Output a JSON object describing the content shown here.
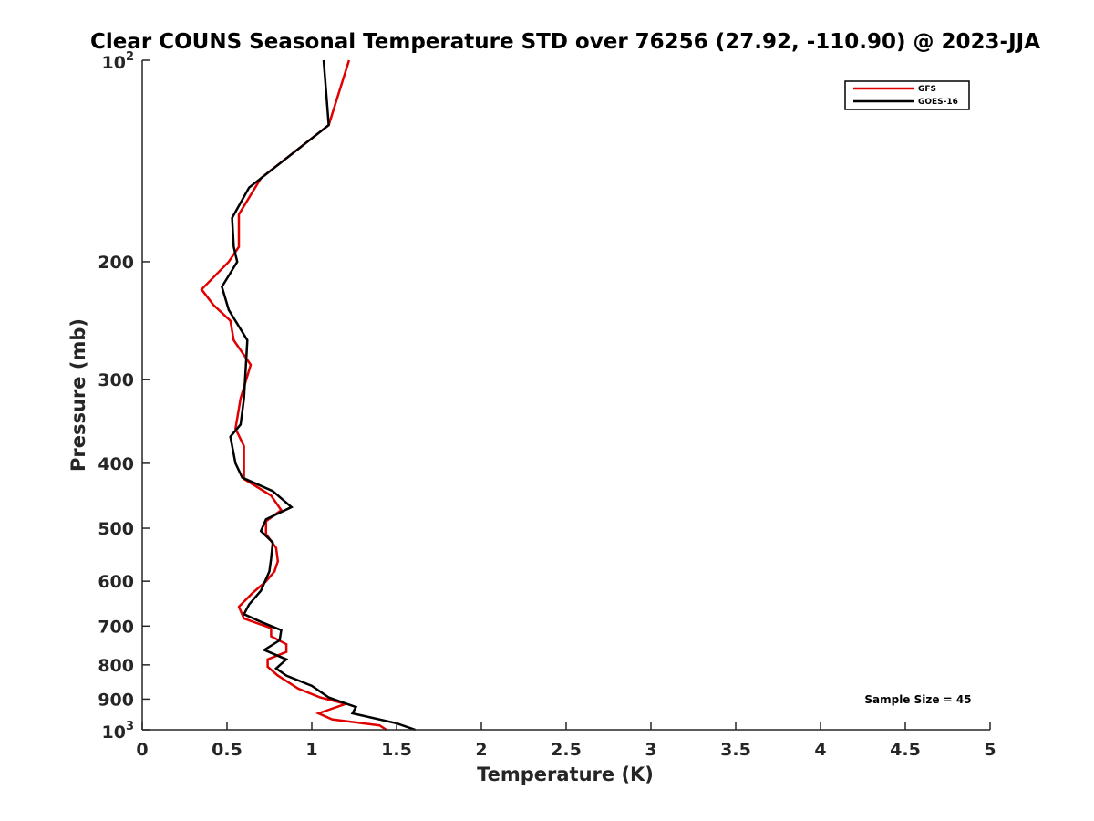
{
  "chart_data": {
    "type": "line",
    "title": "Clear COUNS Seasonal Temperature STD over 76256 (27.92, -110.90) @ 2023-JJA",
    "xlabel": "Temperature (K)",
    "ylabel": "Pressure (mb)",
    "xlim": [
      0,
      5
    ],
    "ylim": [
      1000,
      100
    ],
    "yscale": "log",
    "x_ticks": [
      "0",
      "0.5",
      "1",
      "1.5",
      "2",
      "2.5",
      "3",
      "3.5",
      "4",
      "4.5",
      "5"
    ],
    "y_ticks": [
      "200",
      "300",
      "400",
      "500",
      "600",
      "700",
      "800",
      "900"
    ],
    "y_limit_labels": {
      "top": {
        "base": "10",
        "exp": "2"
      },
      "bottom": {
        "base": "10",
        "exp": "3"
      }
    },
    "legend_position": "top-right",
    "annotation": "Sample Size = 45",
    "grid": false,
    "series": [
      {
        "name": "GFS",
        "color": "#e00000",
        "points": [
          [
            1.22,
            100
          ],
          [
            1.1,
            125
          ],
          [
            0.7,
            150
          ],
          [
            0.57,
            170
          ],
          [
            0.57,
            190
          ],
          [
            0.51,
            200
          ],
          [
            0.35,
            220
          ],
          [
            0.42,
            232
          ],
          [
            0.52,
            245
          ],
          [
            0.54,
            262
          ],
          [
            0.64,
            285
          ],
          [
            0.58,
            320
          ],
          [
            0.55,
            355
          ],
          [
            0.6,
            377
          ],
          [
            0.6,
            422
          ],
          [
            0.76,
            447
          ],
          [
            0.82,
            470
          ],
          [
            0.73,
            488
          ],
          [
            0.73,
            510
          ],
          [
            0.79,
            535
          ],
          [
            0.8,
            560
          ],
          [
            0.78,
            580
          ],
          [
            0.73,
            600
          ],
          [
            0.65,
            625
          ],
          [
            0.57,
            655
          ],
          [
            0.6,
            682
          ],
          [
            0.76,
            705
          ],
          [
            0.76,
            725
          ],
          [
            0.85,
            745
          ],
          [
            0.85,
            765
          ],
          [
            0.74,
            785
          ],
          [
            0.74,
            805
          ],
          [
            0.8,
            830
          ],
          [
            0.92,
            868
          ],
          [
            1.05,
            895
          ],
          [
            1.2,
            915
          ],
          [
            1.04,
            945
          ],
          [
            1.12,
            965
          ],
          [
            1.4,
            985
          ],
          [
            1.44,
            1000
          ]
        ]
      },
      {
        "name": "GOES-16",
        "color": "#000000",
        "points": [
          [
            1.07,
            100
          ],
          [
            1.1,
            125
          ],
          [
            0.63,
            155
          ],
          [
            0.53,
            172
          ],
          [
            0.54,
            190
          ],
          [
            0.56,
            200
          ],
          [
            0.47,
            218
          ],
          [
            0.51,
            236
          ],
          [
            0.62,
            262
          ],
          [
            0.6,
            320
          ],
          [
            0.58,
            350
          ],
          [
            0.52,
            365
          ],
          [
            0.55,
            400
          ],
          [
            0.59,
            420
          ],
          [
            0.77,
            440
          ],
          [
            0.88,
            465
          ],
          [
            0.73,
            485
          ],
          [
            0.7,
            505
          ],
          [
            0.77,
            525
          ],
          [
            0.76,
            555
          ],
          [
            0.75,
            580
          ],
          [
            0.7,
            620
          ],
          [
            0.63,
            650
          ],
          [
            0.6,
            672
          ],
          [
            0.7,
            690
          ],
          [
            0.82,
            710
          ],
          [
            0.81,
            735
          ],
          [
            0.72,
            760
          ],
          [
            0.85,
            785
          ],
          [
            0.79,
            810
          ],
          [
            0.85,
            830
          ],
          [
            1.0,
            860
          ],
          [
            1.1,
            895
          ],
          [
            1.26,
            925
          ],
          [
            1.24,
            945
          ],
          [
            1.5,
            978
          ],
          [
            1.61,
            1000
          ]
        ]
      }
    ]
  }
}
